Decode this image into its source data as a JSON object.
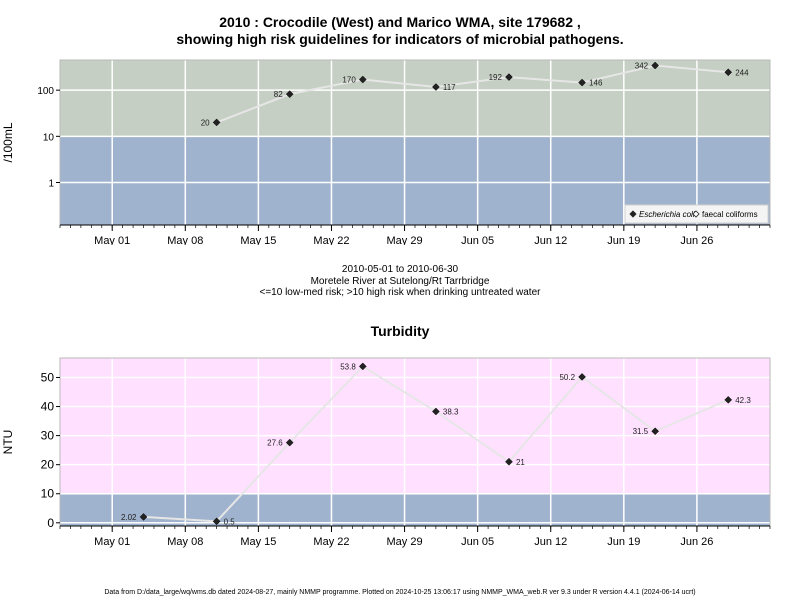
{
  "page": {
    "title_line1": "2010 : Crocodile (West) and Marico WMA, site 179682 ,",
    "title_line2": "showing high risk guidelines for indicators of microbial pathogens.",
    "caption_line1": "2010-05-01 to 2010-06-30",
    "caption_line2": "Moretele River at Sutelong/Rt Tarrbridge",
    "caption_line3": "<=10 low-med risk; >10 high risk when drinking untreated water",
    "chart2_title": "Turbidity",
    "footer": "Data from D:/data_large/wq/wms.db dated 2024-08-27, mainly NMMP programme. Plotted on 2024-10-25 13:06:17 using NMMP_WMA_web.R ver 9.3 under R version 4.4.1 (2024-06-14 ucrt)"
  },
  "chart_data": [
    {
      "type": "line",
      "ylabel": "/100mL",
      "y_scale": "log",
      "yticks": [
        1,
        10,
        100
      ],
      "ytick_labels": [
        "1",
        "10",
        "100"
      ],
      "x_ticks": [
        "May 01",
        "May 08",
        "May 15",
        "May 22",
        "May 29",
        "Jun 05",
        "Jun 12",
        "Jun 19",
        "Jun 26"
      ],
      "x_tick_dates": [
        "2010-05-01",
        "2010-05-08",
        "2010-05-15",
        "2010-05-22",
        "2010-05-29",
        "2010-06-05",
        "2010-06-12",
        "2010-06-19",
        "2010-06-26"
      ],
      "xlim": [
        "2010-04-26",
        "2010-07-03"
      ],
      "ylim": [
        0.12,
        450
      ],
      "threshold": 10,
      "colors": {
        "high": "#c5cfc3",
        "low": "#a0b3ce"
      },
      "legend": {
        "position": "bottom-right",
        "items": [
          {
            "label": "Escherichia coli",
            "marker": "filled-diamond"
          },
          {
            "label": "faecal coliforms",
            "marker": "open-diamond"
          }
        ]
      },
      "series": [
        {
          "name": "Escherichia coli",
          "points": [
            {
              "x": "2010-05-11",
              "y": 20,
              "label": "20",
              "side": "left"
            },
            {
              "x": "2010-05-18",
              "y": 82,
              "label": "82",
              "side": "left"
            },
            {
              "x": "2010-05-25",
              "y": 170,
              "label": "170",
              "side": "left"
            },
            {
              "x": "2010-06-01",
              "y": 117,
              "label": "117",
              "side": "right"
            },
            {
              "x": "2010-06-08",
              "y": 192,
              "label": "192",
              "side": "left"
            },
            {
              "x": "2010-06-15",
              "y": 146,
              "label": "146",
              "side": "right"
            },
            {
              "x": "2010-06-22",
              "y": 342,
              "label": "342",
              "side": "left"
            },
            {
              "x": "2010-06-29",
              "y": 244,
              "label": "244",
              "side": "right"
            }
          ]
        }
      ]
    },
    {
      "type": "line",
      "ylabel": "NTU",
      "yticks": [
        0,
        10,
        20,
        30,
        40,
        50
      ],
      "ytick_labels": [
        "0",
        "10",
        "20",
        "30",
        "40",
        "50"
      ],
      "x_ticks": [
        "May 01",
        "May 08",
        "May 15",
        "May 22",
        "May 29",
        "Jun 05",
        "Jun 12",
        "Jun 19",
        "Jun 26"
      ],
      "x_tick_dates": [
        "2010-05-01",
        "2010-05-08",
        "2010-05-15",
        "2010-05-22",
        "2010-05-29",
        "2010-06-05",
        "2010-06-12",
        "2010-06-19",
        "2010-06-26"
      ],
      "xlim": [
        "2010-04-26",
        "2010-07-03"
      ],
      "ylim": [
        -1.1,
        56.7
      ],
      "threshold": 10,
      "colors": {
        "high": "#ffe0ff",
        "low": "#a0b3ce"
      },
      "series": [
        {
          "name": "Turbidity",
          "points": [
            {
              "x": "2010-05-04",
              "y": 2.02,
              "label": "2.02",
              "side": "left"
            },
            {
              "x": "2010-05-11",
              "y": 0.5,
              "label": "0.5",
              "side": "right"
            },
            {
              "x": "2010-05-18",
              "y": 27.6,
              "label": "27.6",
              "side": "left"
            },
            {
              "x": "2010-05-25",
              "y": 53.8,
              "label": "53.8",
              "side": "left"
            },
            {
              "x": "2010-06-01",
              "y": 38.3,
              "label": "38.3",
              "side": "right"
            },
            {
              "x": "2010-06-08",
              "y": 21,
              "label": "21",
              "side": "right"
            },
            {
              "x": "2010-06-15",
              "y": 50.2,
              "label": "50.2",
              "side": "left"
            },
            {
              "x": "2010-06-22",
              "y": 31.5,
              "label": "31.5",
              "side": "left"
            },
            {
              "x": "2010-06-29",
              "y": 42.3,
              "label": "42.3",
              "side": "right"
            }
          ]
        }
      ]
    }
  ]
}
